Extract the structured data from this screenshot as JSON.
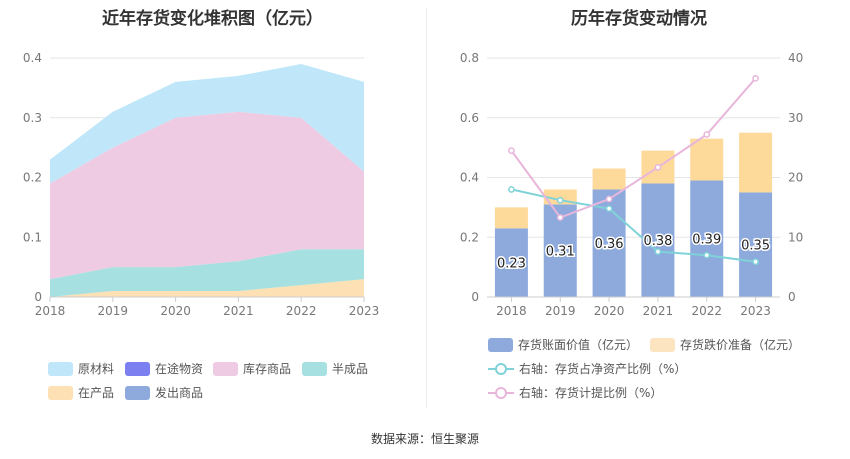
{
  "left": {
    "title": "近年存货变化堆积图（亿元）",
    "legend": [
      {
        "label": "原材料",
        "color": "#bfe7f9"
      },
      {
        "label": "在途物资",
        "color": "#7b7ff0"
      },
      {
        "label": "库存商品",
        "color": "#eecbe3"
      },
      {
        "label": "半成品",
        "color": "#a6e0e0"
      },
      {
        "label": "在产品",
        "color": "#fde0b3"
      },
      {
        "label": "发出商品",
        "color": "#8eaadd"
      }
    ]
  },
  "right": {
    "title": "历年存货变动情况",
    "legend": [
      {
        "label": "存货账面价值（亿元）",
        "color": "#8eaadd"
      },
      {
        "label": "存货跌价准备（亿元）",
        "color": "#fdd99a"
      },
      {
        "label": "右轴：存货占净资产比例（%）",
        "color": "#7fd3d8"
      },
      {
        "label": "右轴：存货计提比例（%）",
        "color": "#e8b6db"
      }
    ]
  },
  "source": "数据来源：恒生聚源",
  "chart_data": [
    {
      "type": "area",
      "title": "近年存货变化堆积图（亿元）",
      "stacked": true,
      "x": [
        "2018",
        "2019",
        "2020",
        "2021",
        "2022",
        "2023"
      ],
      "ylim": [
        0,
        0.4
      ],
      "yticks": [
        "0",
        "0.1",
        "0.2",
        "0.3",
        "0.4"
      ],
      "grid": true,
      "legend_position": "bottom",
      "series": [
        {
          "name": "在产品",
          "color": "#fde0b3",
          "values": [
            0.0,
            0.01,
            0.01,
            0.01,
            0.02,
            0.03
          ]
        },
        {
          "name": "半成品",
          "color": "#a6e0e0",
          "values": [
            0.03,
            0.04,
            0.04,
            0.05,
            0.06,
            0.05
          ]
        },
        {
          "name": "库存商品",
          "color": "#eecbe3",
          "values": [
            0.16,
            0.2,
            0.25,
            0.25,
            0.22,
            0.13
          ]
        },
        {
          "name": "原材料",
          "color": "#bfe7f9",
          "values": [
            0.04,
            0.06,
            0.06,
            0.06,
            0.09,
            0.15
          ]
        }
      ]
    },
    {
      "type": "bar",
      "title": "历年存货变动情况",
      "stacked": true,
      "categories": [
        "2018",
        "2019",
        "2020",
        "2021",
        "2022",
        "2023"
      ],
      "ylim": [
        0,
        0.8
      ],
      "yticks": [
        "0",
        "0.2",
        "0.4",
        "0.6",
        "0.8"
      ],
      "y2lim": [
        0,
        40
      ],
      "y2ticks": [
        "0",
        "10",
        "20",
        "30",
        "40"
      ],
      "grid": true,
      "legend_position": "bottom",
      "series": [
        {
          "name": "存货账面价值（亿元）",
          "type": "bar",
          "color": "#8eaadd",
          "values": [
            0.23,
            0.31,
            0.36,
            0.38,
            0.39,
            0.35
          ],
          "labels": [
            "0.23",
            "0.31",
            "0.36",
            "0.38",
            "0.39",
            "0.35"
          ]
        },
        {
          "name": "存货跌价准备（亿元）",
          "type": "bar",
          "color": "#fdd99a",
          "values": [
            0.07,
            0.05,
            0.07,
            0.11,
            0.14,
            0.2
          ]
        },
        {
          "name": "右轴：存货占净资产比例（%）",
          "type": "line",
          "axis": "right",
          "color": "#7fd3d8",
          "values": [
            18.0,
            16.2,
            14.8,
            7.6,
            7.0,
            5.9
          ]
        },
        {
          "name": "右轴：存货计提比例（%）",
          "type": "line",
          "axis": "right",
          "color": "#e8b6db",
          "values": [
            24.5,
            13.3,
            16.4,
            21.7,
            27.2,
            36.6
          ]
        }
      ]
    }
  ]
}
